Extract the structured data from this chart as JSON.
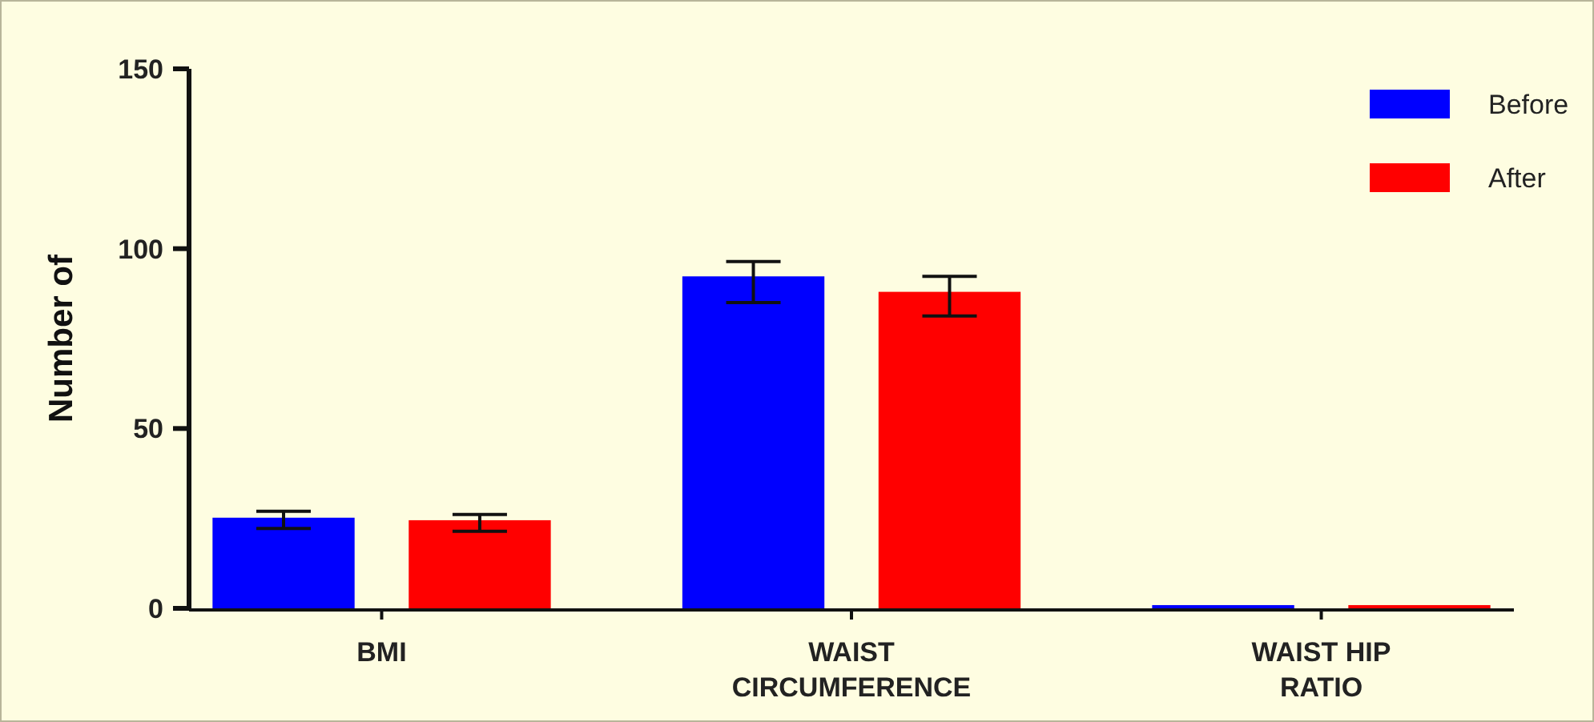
{
  "chart_data": {
    "type": "bar",
    "ylabel": "Number of",
    "categories": [
      "BMI",
      "WAIST\nCIRCUMFERENCE",
      "WAIST HIP\nRATIO"
    ],
    "series": [
      {
        "name": "Before",
        "color": "#0000ff",
        "values": [
          25.2,
          92.3,
          0.9
        ],
        "errors": [
          [
            22.2,
            27
          ],
          [
            85,
            96.4
          ],
          null
        ]
      },
      {
        "name": "After",
        "color": "#ff0000",
        "values": [
          24.5,
          88,
          0.9
        ],
        "errors": [
          [
            21.4,
            26.1
          ],
          [
            81.3,
            92.3
          ],
          null
        ]
      }
    ],
    "ylim": [
      0,
      150
    ],
    "yticks": [
      0,
      50,
      100,
      150
    ],
    "grid": false,
    "legend": "top right"
  }
}
